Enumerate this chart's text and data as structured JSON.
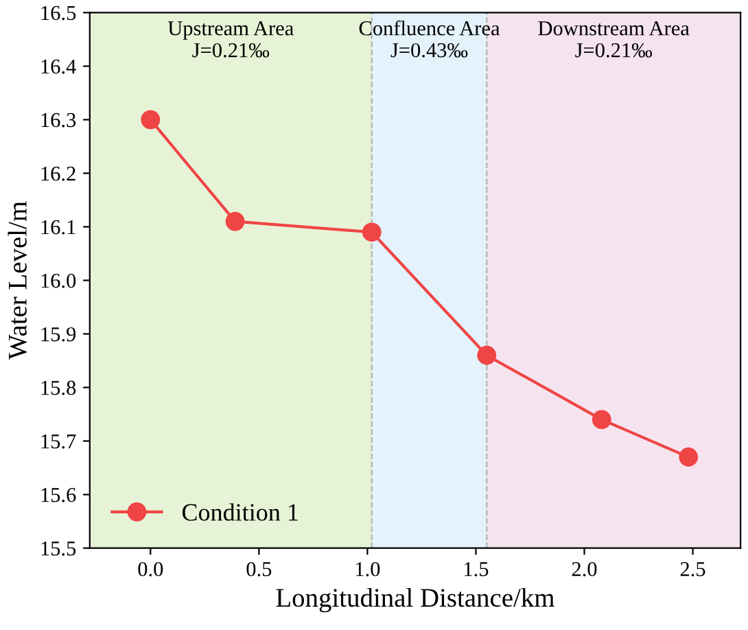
{
  "chart_data": {
    "type": "line",
    "xlabel": "Longitudinal Distance/km",
    "ylabel": "Water Level/m",
    "x": [
      0.0,
      0.39,
      1.02,
      1.55,
      2.08,
      2.48
    ],
    "series": [
      {
        "name": "Condition 1",
        "color": "#f04545",
        "values": [
          16.3,
          16.11,
          16.09,
          15.86,
          15.74,
          15.67
        ]
      }
    ],
    "xlim": [
      -0.28,
      2.72
    ],
    "xticks": [
      {
        "value": 0,
        "label": "0.0"
      },
      0.5,
      {
        "value": 1,
        "label": "1.0"
      },
      1.5,
      {
        "value": 2,
        "label": "2.0"
      },
      2.5
    ],
    "ylim": [
      15.5,
      16.5
    ],
    "yticks": [
      15.5,
      15.6,
      15.7,
      15.8,
      15.9,
      {
        "value": 16,
        "label": "16.0"
      },
      16.1,
      16.2,
      16.3,
      16.4,
      16.5
    ],
    "bands": [
      {
        "axis": "x",
        "from": -0.28,
        "to": 1.02,
        "label": "Upstream Area\nJ=0.21‰",
        "color": "#e7f3d6"
      },
      {
        "axis": "x",
        "from": 1.02,
        "to": 1.55,
        "label": "Confluence Area\nJ=0.43‰",
        "color": "#e4f2fc"
      },
      {
        "axis": "x",
        "from": 1.55,
        "to": 2.72,
        "label": "Downstream Area\nJ=0.21‰",
        "color": "#f5e4ef"
      }
    ],
    "marker": "circle",
    "line_style": "solid",
    "grid": false,
    "legend": "bottom left"
  }
}
